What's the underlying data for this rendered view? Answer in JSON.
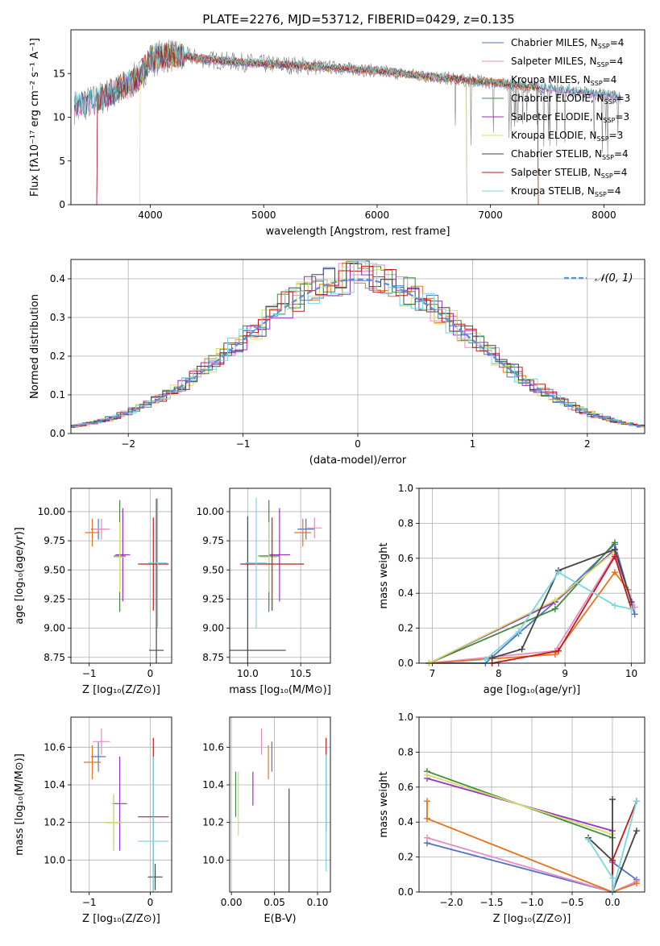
{
  "figure_title": "PLATE=2276, MJD=53712, FIBERID=0429, z=0.135",
  "chart_data": [
    {
      "id": "spectrum",
      "type": "line",
      "xlabel": "wavelength [Angstrom, rest frame]",
      "ylabel": "Flux [fλ10⁻¹⁷ erg cm⁻² s⁻¹ A⁻¹]",
      "xlim": [
        3300,
        8360
      ],
      "ylim": [
        0,
        20
      ],
      "xticks": [
        4000,
        5000,
        6000,
        7000,
        8000
      ],
      "yticks": [
        0,
        5,
        10,
        15
      ],
      "grid": false,
      "legend_position": "top-right",
      "continuum": {
        "x": [
          3330,
          3500,
          3700,
          3900,
          4000,
          4200,
          4500,
          5000,
          5500,
          6000,
          6500,
          7000,
          7500,
          8000,
          8150
        ],
        "y": [
          11.2,
          11.8,
          13.0,
          14.5,
          16.6,
          17.2,
          16.6,
          16.1,
          15.8,
          15.3,
          14.6,
          14.0,
          13.3,
          12.6,
          12.3
        ]
      },
      "series": [
        {
          "name": "Chabrier MILES, N_SSP=4",
          "legend": "Chabrier MILES, N",
          "sub": "SSP",
          "suffix": "=4",
          "color": "#4f72c7",
          "drop": null
        },
        {
          "name": "Salpeter MILES, N_SSP=4",
          "legend": "Salpeter MILES, N",
          "sub": "SSP",
          "suffix": "=4",
          "color": "#e88bc4",
          "drop": null
        },
        {
          "name": "Kroupa MILES, N_SSP=4",
          "legend": "Kroupa MILES, N",
          "sub": "SSP",
          "suffix": "=4",
          "color": "#e6741c",
          "drop": [
            3530,
            7420
          ]
        },
        {
          "name": "Chabrier ELODIE, N_SSP=3",
          "legend": "Chabrier ELODIE, N",
          "sub": "SSP",
          "suffix": "=3",
          "color": "#3f8a3f",
          "drop": [
            3530,
            7420
          ]
        },
        {
          "name": "Salpeter ELODIE, N_SSP=3",
          "legend": "Salpeter ELODIE, N",
          "sub": "SSP",
          "suffix": "=3",
          "color": "#9b30c4",
          "drop": [
            3530,
            6790
          ]
        },
        {
          "name": "Kroupa ELODIE, N_SSP=3",
          "legend": "Kroupa ELODIE, N",
          "sub": "SSP",
          "suffix": "=3",
          "color": "#d3e06a",
          "drop": [
            3910,
            6790
          ]
        },
        {
          "name": "Chabrier STELIB, N_SSP=4",
          "legend": "Chabrier STELIB, N",
          "sub": "SSP",
          "suffix": "=4",
          "color": "#444444",
          "drop": null
        },
        {
          "name": "Salpeter STELIB, N_SSP=4",
          "legend": "Salpeter STELIB, N",
          "sub": "SSP",
          "suffix": "=4",
          "color": "#c21a1a",
          "drop": [
            3530,
            7420
          ]
        },
        {
          "name": "Kroupa STELIB, N_SSP=4",
          "legend": "Kroupa STELIB, N",
          "sub": "SSP",
          "suffix": "=4",
          "color": "#77d8e0",
          "drop": null
        }
      ],
      "data_color": "#808080"
    },
    {
      "id": "residuals",
      "type": "histogram",
      "xlabel": "(data-model)/error",
      "ylabel": "Normed distribution",
      "xlim": [
        -2.5,
        2.5
      ],
      "ylim": [
        0,
        0.45
      ],
      "xticks": [
        -2,
        -1,
        0,
        1,
        2
      ],
      "yticks": [
        0.0,
        0.1,
        0.2,
        0.3,
        0.4
      ],
      "grid": true,
      "legend": {
        "label": "𝒩(0, 1)",
        "position": "top-right",
        "color": "#5b8fd6"
      },
      "bin_width": 0.1
    },
    {
      "id": "age-vs-Z",
      "type": "errorbar",
      "xlabel": "Z [log₁₀(Z/Z⊙)]",
      "ylabel": "age  [log₁₀(age/yr)]",
      "xlim": [
        -1.3,
        0.35
      ],
      "ylim": [
        8.7,
        10.2
      ],
      "xticks": [
        -1,
        0
      ],
      "yticks": [
        8.75,
        9.0,
        9.25,
        9.5,
        9.75,
        10.0
      ],
      "grid": true,
      "points": [
        {
          "x": -0.85,
          "y": 9.85,
          "xerr": 0.12,
          "yerr": 0.09,
          "color": "#4f72c7"
        },
        {
          "x": -0.8,
          "y": 9.85,
          "xerr": 0.14,
          "yerr": 0.09,
          "color": "#e88bc4"
        },
        {
          "x": -0.95,
          "y": 9.82,
          "xerr": 0.12,
          "yerr": 0.12,
          "color": "#e6741c"
        },
        {
          "x": -0.5,
          "y": 9.62,
          "xerr": 0.1,
          "yerr": 0.48,
          "color": "#3f8a3f"
        },
        {
          "x": -0.45,
          "y": 9.63,
          "xerr": 0.12,
          "yerr": 0.4,
          "color": "#9b30c4"
        },
        {
          "x": -0.5,
          "y": 9.61,
          "xerr": 0.1,
          "yerr": 0.3,
          "color": "#d3e06a"
        },
        {
          "x": 0.1,
          "y": 8.81,
          "xerr": 0.12,
          "yerr": 1.3,
          "color": "#444444"
        },
        {
          "x": 0.05,
          "y": 9.55,
          "xerr": 0.25,
          "yerr": 0.4,
          "color": "#c21a1a"
        },
        {
          "x": 0.12,
          "y": 9.56,
          "xerr": 0.15,
          "yerr": 0.56,
          "color": "#77d8e0"
        }
      ]
    },
    {
      "id": "age-vs-mass",
      "type": "errorbar",
      "xlabel": "mass [log₁₀(M/M⊙)]",
      "ylabel": "",
      "xlim": [
        9.83,
        10.78
      ],
      "ylim": [
        8.7,
        10.2
      ],
      "xticks": [
        10.0,
        10.5
      ],
      "yticks": [
        8.75,
        9.0,
        9.25,
        9.5,
        9.75,
        10.0
      ],
      "grid": true,
      "points": [
        {
          "x": 10.55,
          "y": 9.85,
          "xerr": 0.08,
          "yerr": 0.09,
          "color": "#4f72c7"
        },
        {
          "x": 10.63,
          "y": 9.86,
          "xerr": 0.07,
          "yerr": 0.09,
          "color": "#e88bc4"
        },
        {
          "x": 10.52,
          "y": 9.82,
          "xerr": 0.08,
          "yerr": 0.12,
          "color": "#e6741c"
        },
        {
          "x": 10.2,
          "y": 9.62,
          "xerr": 0.1,
          "yerr": 0.48,
          "color": "#3f8a3f"
        },
        {
          "x": 10.3,
          "y": 9.63,
          "xerr": 0.1,
          "yerr": 0.4,
          "color": "#9b30c4"
        },
        {
          "x": 10.2,
          "y": 9.61,
          "xerr": 0.08,
          "yerr": 0.3,
          "color": "#d3e06a"
        },
        {
          "x": 10.0,
          "y": 8.81,
          "xerr": 0.36,
          "yerr": 1.15,
          "color": "#444444"
        },
        {
          "x": 10.23,
          "y": 9.55,
          "xerr": 0.3,
          "yerr": 0.4,
          "color": "#c21a1a"
        },
        {
          "x": 10.08,
          "y": 9.56,
          "xerr": 0.1,
          "yerr": 0.56,
          "color": "#77d8e0"
        }
      ]
    },
    {
      "id": "weight-vs-age",
      "type": "line",
      "xlabel": "age  [log₁₀(age/yr)]",
      "ylabel": "mass weight",
      "xlim": [
        6.8,
        10.2
      ],
      "ylim": [
        0,
        1.0
      ],
      "xticks": [
        7,
        8,
        9,
        10
      ],
      "yticks": [
        0.0,
        0.2,
        0.4,
        0.6,
        0.8,
        1.0
      ],
      "grid": true,
      "series": [
        {
          "color": "#4f72c7",
          "x": [
            6.95,
            7.8,
            8.3,
            8.85,
            9.75,
            10.05
          ],
          "y": [
            0.0,
            0.0,
            0.17,
            0.35,
            0.68,
            0.28
          ]
        },
        {
          "color": "#e88bc4",
          "x": [
            6.95,
            8.85,
            9.75,
            10.05
          ],
          "y": [
            0.0,
            0.07,
            0.62,
            0.32
          ]
        },
        {
          "color": "#e6741c",
          "x": [
            6.95,
            8.85,
            9.75,
            9.95
          ],
          "y": [
            0.0,
            0.05,
            0.52,
            0.42
          ]
        },
        {
          "color": "#3f8a3f",
          "x": [
            6.95,
            8.85,
            9.75
          ],
          "y": [
            0.0,
            0.31,
            0.69
          ]
        },
        {
          "color": "#9b30c4",
          "x": [
            6.95,
            8.85,
            9.75
          ],
          "y": [
            0.0,
            0.35,
            0.65
          ]
        },
        {
          "color": "#d3e06a",
          "x": [
            6.95,
            8.85,
            9.75
          ],
          "y": [
            0.0,
            0.36,
            0.64
          ]
        },
        {
          "color": "#444444",
          "x": [
            7.9,
            8.35,
            8.9,
            9.75,
            10.0
          ],
          "y": [
            0.03,
            0.08,
            0.53,
            0.65,
            0.35
          ]
        },
        {
          "color": "#c21a1a",
          "x": [
            7.9,
            8.9,
            9.75,
            10.0
          ],
          "y": [
            0.0,
            0.07,
            0.61,
            0.31
          ]
        },
        {
          "color": "#77d8e0",
          "x": [
            7.8,
            8.3,
            8.9,
            9.75,
            10.0
          ],
          "y": [
            0.02,
            0.18,
            0.52,
            0.33,
            0.31
          ]
        }
      ]
    },
    {
      "id": "mass-vs-Z",
      "type": "errorbar",
      "xlabel": "Z [log₁₀(Z/Z⊙)]",
      "ylabel": "mass [log₁₀(M/M⊙)]",
      "xlim": [
        -1.3,
        0.35
      ],
      "ylim": [
        9.83,
        10.76
      ],
      "xticks": [
        -1,
        0
      ],
      "yticks": [
        10.0,
        10.2,
        10.4,
        10.6
      ],
      "grid": true,
      "points": [
        {
          "x": -0.85,
          "y": 10.55,
          "xerr": 0.12,
          "yerr": 0.08,
          "color": "#4f72c7"
        },
        {
          "x": -0.8,
          "y": 10.63,
          "xerr": 0.14,
          "yerr": 0.07,
          "color": "#e88bc4"
        },
        {
          "x": -0.95,
          "y": 10.52,
          "xerr": 0.14,
          "yerr": 0.09,
          "color": "#e6741c"
        },
        {
          "x": -0.6,
          "y": 10.2,
          "xerr": 0.14,
          "yerr": 0.15,
          "color": "#3f8a3f"
        },
        {
          "x": -0.5,
          "y": 10.3,
          "xerr": 0.12,
          "yerr": 0.25,
          "color": "#9b30c4"
        },
        {
          "x": -0.6,
          "y": 10.2,
          "xerr": 0.14,
          "yerr": 0.15,
          "color": "#d3e06a"
        },
        {
          "x": 0.08,
          "y": 9.91,
          "xerr": 0.12,
          "yerr": 0.07,
          "color": "#444444"
        },
        {
          "x": 0.05,
          "y": 10.23,
          "xerr": 0.25,
          "yerr": 0.42,
          "color": "#c21a1a"
        },
        {
          "x": 0.05,
          "y": 10.1,
          "xerr": 0.25,
          "yerr": 0.45,
          "color": "#77d8e0"
        }
      ]
    },
    {
      "id": "mass-vs-EBV",
      "type": "errorbar",
      "xlabel": "E(B-V)",
      "ylabel": "",
      "xlim": [
        -0.002,
        0.115
      ],
      "ylim": [
        9.83,
        10.76
      ],
      "xticks": [
        0.0,
        0.05,
        0.1
      ],
      "yticks": [
        10.0,
        10.2,
        10.4,
        10.6
      ],
      "grid": true,
      "points": [
        {
          "x": 0.047,
          "y": 10.55,
          "xerr": 0,
          "yerr": 0.08,
          "color": "#4f72c7"
        },
        {
          "x": 0.035,
          "y": 10.63,
          "xerr": 0,
          "yerr": 0.07,
          "color": "#e88bc4"
        },
        {
          "x": 0.043,
          "y": 10.52,
          "xerr": 0,
          "yerr": 0.09,
          "color": "#e6741c"
        },
        {
          "x": 0.005,
          "y": 10.35,
          "xerr": 0,
          "yerr": 0.12,
          "color": "#3f8a3f"
        },
        {
          "x": 0.025,
          "y": 10.38,
          "xerr": 0,
          "yerr": 0.09,
          "color": "#9b30c4"
        },
        {
          "x": 0.008,
          "y": 10.3,
          "xerr": 0,
          "yerr": 0.17,
          "color": "#d3e06a"
        },
        {
          "x": 0.067,
          "y": 10.1,
          "xerr": 0,
          "yerr": 0.28,
          "color": "#444444"
        },
        {
          "x": 0.11,
          "y": 10.4,
          "xerr": 0,
          "yerr": 0.25,
          "color": "#c21a1a"
        },
        {
          "x": 0.11,
          "y": 10.25,
          "xerr": 0,
          "yerr": 0.31,
          "color": "#77d8e0"
        }
      ]
    },
    {
      "id": "weight-vs-Z",
      "type": "line",
      "xlabel": "Z [log₁₀(Z/Z⊙)]",
      "ylabel": "mass weight",
      "xlim": [
        -2.4,
        0.4
      ],
      "ylim": [
        0,
        1.0
      ],
      "xticks": [
        -2.0,
        -1.5,
        -1.0,
        -0.5,
        0.0
      ],
      "yticks": [
        0.0,
        0.2,
        0.4,
        0.6,
        0.8,
        1.0
      ],
      "grid": true,
      "series": [
        {
          "color": "#4f72c7",
          "x": [
            -2.3,
            0.0,
            0.0,
            0.3
          ],
          "y": [
            0.28,
            0.0,
            0.17,
            0.07
          ]
        },
        {
          "color": "#e88bc4",
          "x": [
            -2.3,
            0.0,
            0.3
          ],
          "y": [
            0.31,
            0.0,
            0.06
          ]
        },
        {
          "color": "#e6741c",
          "x": [
            -2.3,
            -2.3,
            0.0,
            0.3
          ],
          "y": [
            0.52,
            0.42,
            0.0,
            0.05
          ]
        },
        {
          "color": "#3f8a3f",
          "x": [
            -2.3,
            0.0
          ],
          "y": [
            0.69,
            0.31
          ]
        },
        {
          "color": "#9b30c4",
          "x": [
            -2.3,
            0.0
          ],
          "y": [
            0.65,
            0.35
          ]
        },
        {
          "color": "#d3e06a",
          "x": [
            -2.3,
            0.0
          ],
          "y": [
            0.67,
            0.33
          ]
        },
        {
          "color": "#444444",
          "x": [
            -0.3,
            0.0,
            0.0,
            0.0,
            0.3
          ],
          "y": [
            0.31,
            0.18,
            0.53,
            0.0,
            0.35
          ]
        },
        {
          "color": "#c21a1a",
          "x": [
            0.0,
            0.0,
            0.3
          ],
          "y": [
            0.0,
            0.18,
            0.52
          ]
        },
        {
          "color": "#77d8e0",
          "x": [
            -0.3,
            0.0,
            0.0,
            0.3
          ],
          "y": [
            0.3,
            0.08,
            0.0,
            0.52
          ]
        }
      ]
    }
  ]
}
